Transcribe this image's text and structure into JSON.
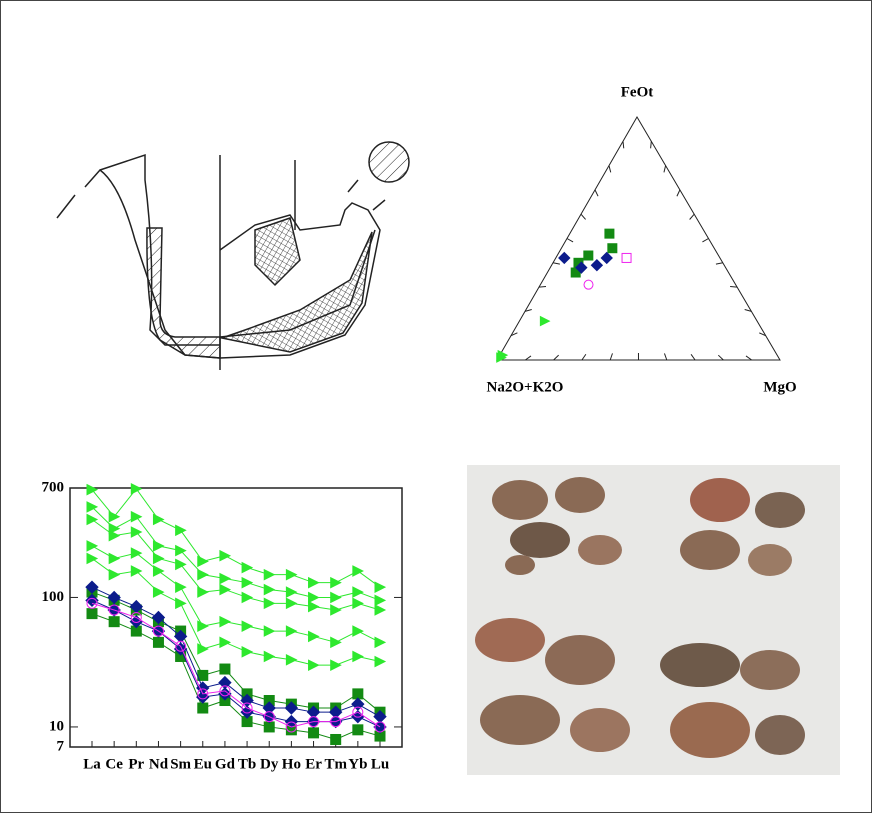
{
  "ternary": {
    "type": "ternary",
    "apex_labels": [
      "FeOt",
      "Na2O+K2O",
      "MgO"
    ],
    "ticks": [
      10,
      20,
      30,
      40,
      50,
      60,
      70,
      80,
      90
    ],
    "series": [
      {
        "color": "#2ee82e",
        "marker": "triangle",
        "points": [
          [
            16,
            75,
            9
          ],
          [
            1,
            98,
            1
          ],
          [
            2,
            97,
            1
          ]
        ]
      },
      {
        "color": "#138a13",
        "marker": "square",
        "points": [
          [
            52,
            34,
            14
          ],
          [
            46,
            36,
            18
          ],
          [
            40,
            51,
            9
          ],
          [
            43,
            46,
            11
          ],
          [
            36,
            54,
            10
          ]
        ]
      },
      {
        "color": "#0c1c8c",
        "marker": "diamond",
        "points": [
          [
            42,
            55,
            3
          ],
          [
            38,
            51,
            11
          ],
          [
            39,
            45,
            16
          ],
          [
            42,
            40,
            18
          ]
        ]
      },
      {
        "color": "#ee22ee",
        "marker": "square-open",
        "points": [
          [
            42,
            33,
            25
          ]
        ]
      },
      {
        "color": "#ee22ee",
        "marker": "circle-open",
        "points": [
          [
            31,
            52,
            17
          ]
        ]
      }
    ]
  },
  "chart_data": {
    "type": "line",
    "log_scale": true,
    "categories": [
      "La",
      "Ce",
      "Pr",
      "Nd",
      "Sm",
      "Eu",
      "Gd",
      "Tb",
      "Dy",
      "Ho",
      "Er",
      "Tm",
      "Yb",
      "Lu"
    ],
    "ylim": [
      7,
      700
    ],
    "yticks": [
      7,
      10,
      100,
      700
    ],
    "series": [
      {
        "color": "#2ee82e",
        "marker": "triangle",
        "values": [
          680,
          420,
          690,
          400,
          330,
          190,
          210,
          170,
          150,
          150,
          130,
          130,
          160,
          120
        ]
      },
      {
        "color": "#2ee82e",
        "marker": "triangle",
        "values": [
          500,
          340,
          420,
          250,
          230,
          150,
          140,
          130,
          115,
          110,
          100,
          100,
          110,
          95
        ]
      },
      {
        "color": "#2ee82e",
        "marker": "triangle",
        "values": [
          400,
          300,
          320,
          200,
          180,
          110,
          115,
          100,
          90,
          90,
          85,
          80,
          90,
          80
        ]
      },
      {
        "color": "#2ee82e",
        "marker": "triangle",
        "values": [
          250,
          200,
          220,
          160,
          120,
          60,
          65,
          60,
          55,
          55,
          50,
          45,
          55,
          45
        ]
      },
      {
        "color": "#2ee82e",
        "marker": "triangle",
        "values": [
          200,
          150,
          160,
          110,
          90,
          40,
          45,
          38,
          35,
          33,
          30,
          30,
          35,
          32
        ]
      },
      {
        "color": "#138a13",
        "marker": "square",
        "values": [
          110,
          95,
          80,
          65,
          55,
          25,
          28,
          18,
          16,
          15,
          14,
          14,
          18,
          13
        ]
      },
      {
        "color": "#138a13",
        "marker": "square",
        "values": [
          75,
          65,
          55,
          45,
          35,
          14,
          16,
          11,
          10,
          9.5,
          9,
          8,
          9.5,
          8.5
        ]
      },
      {
        "color": "#0c1c8c",
        "marker": "diamond",
        "values": [
          120,
          100,
          85,
          70,
          50,
          20,
          22,
          16,
          14,
          14,
          13,
          13,
          15,
          12
        ]
      },
      {
        "color": "#0c1c8c",
        "marker": "diamond",
        "values": [
          95,
          80,
          65,
          55,
          40,
          17,
          18,
          13,
          12,
          11,
          11,
          11,
          12,
          10
        ]
      },
      {
        "color": "#ee22ee",
        "marker": "circle-open",
        "values": [
          90,
          80,
          70,
          55,
          42,
          18,
          19,
          14,
          12,
          10,
          11,
          11,
          13,
          10
        ]
      }
    ]
  }
}
